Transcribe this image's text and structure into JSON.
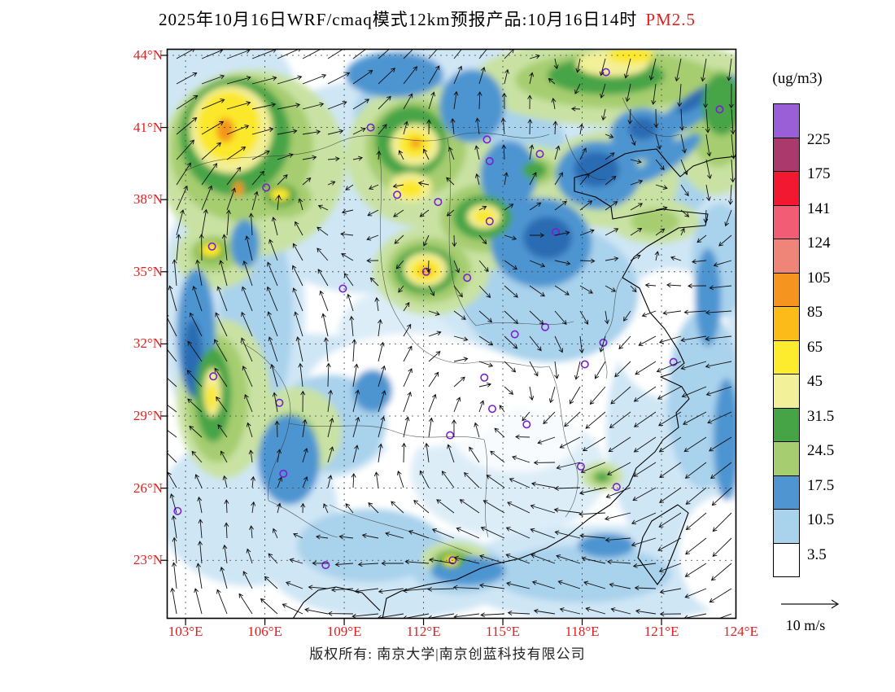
{
  "title": {
    "main": "2025年10月16日WRF/cmaq模式12km预报产品:10月16日14时",
    "variable": "PM2.5"
  },
  "footer": {
    "copyright": "版权所有: 南京大学|南京创蓝科技有限公司"
  },
  "colors": {
    "axis_label_red": "#e01f1f",
    "title_highlight_red": "#e01f1f",
    "station_marker_purple": "#7a1fd0"
  },
  "chart_data": {
    "type": "heatmap",
    "title": "2025年10月16日WRF/cmaq模式12km预报产品:10月16日14时 PM2.5",
    "variable": "PM2.5",
    "unit_label": "(ug/m3)",
    "wind_reference": "10 m/s",
    "lon_range": [
      102.29,
      123.83
    ],
    "lat_range": [
      20.57,
      44.27
    ],
    "lon_ticks": [
      {
        "label": "103°E",
        "value": 103
      },
      {
        "label": "106°E",
        "value": 106
      },
      {
        "label": "109°E",
        "value": 109
      },
      {
        "label": "112°E",
        "value": 112
      },
      {
        "label": "115°E",
        "value": 115
      },
      {
        "label": "118°E",
        "value": 118
      },
      {
        "label": "121°E",
        "value": 121
      },
      {
        "label": "124°E",
        "value": 124
      }
    ],
    "lat_ticks": [
      {
        "label": "44°N",
        "value": 44
      },
      {
        "label": "41°N",
        "value": 41
      },
      {
        "label": "38°N",
        "value": 38
      },
      {
        "label": "35°N",
        "value": 35
      },
      {
        "label": "32°N",
        "value": 32
      },
      {
        "label": "29°N",
        "value": 29
      },
      {
        "label": "26°N",
        "value": 26
      },
      {
        "label": "23°N",
        "value": 23
      }
    ],
    "colorbar": {
      "unit": "(ug/m3)",
      "levels": [
        225,
        175,
        141,
        124,
        105,
        85,
        65,
        45,
        31.5,
        24.5,
        17.5,
        10.5,
        3.5
      ],
      "segment_colors_top_to_bottom": [
        "#9a5fd6",
        "#aa3a6b",
        "#f2182f",
        "#f25c74",
        "#ef8478",
        "#f5941e",
        "#fbbc1a",
        "#fdec2e",
        "#f2f099",
        "#46a446",
        "#a6cd70",
        "#4e95d1",
        "#a9d2ec",
        "#ffffff"
      ]
    },
    "stations": [
      {
        "lon": 118.9,
        "lat": 43.3
      },
      {
        "lon": 123.2,
        "lat": 41.75
      },
      {
        "lon": 110.0,
        "lat": 41.0
      },
      {
        "lon": 114.4,
        "lat": 40.5
      },
      {
        "lon": 114.5,
        "lat": 39.6
      },
      {
        "lon": 116.4,
        "lat": 39.9
      },
      {
        "lon": 106.05,
        "lat": 38.5
      },
      {
        "lon": 111.0,
        "lat": 38.2
      },
      {
        "lon": 112.55,
        "lat": 37.9
      },
      {
        "lon": 114.5,
        "lat": 37.1
      },
      {
        "lon": 104.0,
        "lat": 36.05
      },
      {
        "lon": 112.1,
        "lat": 35.0
      },
      {
        "lon": 108.95,
        "lat": 34.3
      },
      {
        "lon": 113.65,
        "lat": 34.75
      },
      {
        "lon": 117.0,
        "lat": 36.65
      },
      {
        "lon": 115.45,
        "lat": 32.4
      },
      {
        "lon": 116.6,
        "lat": 32.7
      },
      {
        "lon": 118.8,
        "lat": 32.05
      },
      {
        "lon": 118.1,
        "lat": 31.15
      },
      {
        "lon": 121.45,
        "lat": 31.25
      },
      {
        "lon": 104.05,
        "lat": 30.65
      },
      {
        "lon": 106.55,
        "lat": 29.55
      },
      {
        "lon": 114.3,
        "lat": 30.6
      },
      {
        "lon": 114.6,
        "lat": 29.3
      },
      {
        "lon": 113.0,
        "lat": 28.2
      },
      {
        "lon": 115.9,
        "lat": 28.65
      },
      {
        "lon": 106.7,
        "lat": 26.6
      },
      {
        "lon": 117.95,
        "lat": 26.9
      },
      {
        "lon": 119.3,
        "lat": 26.05
      },
      {
        "lon": 102.7,
        "lat": 25.05
      },
      {
        "lon": 108.3,
        "lat": 22.8
      },
      {
        "lon": 113.1,
        "lat": 23.0
      }
    ]
  }
}
